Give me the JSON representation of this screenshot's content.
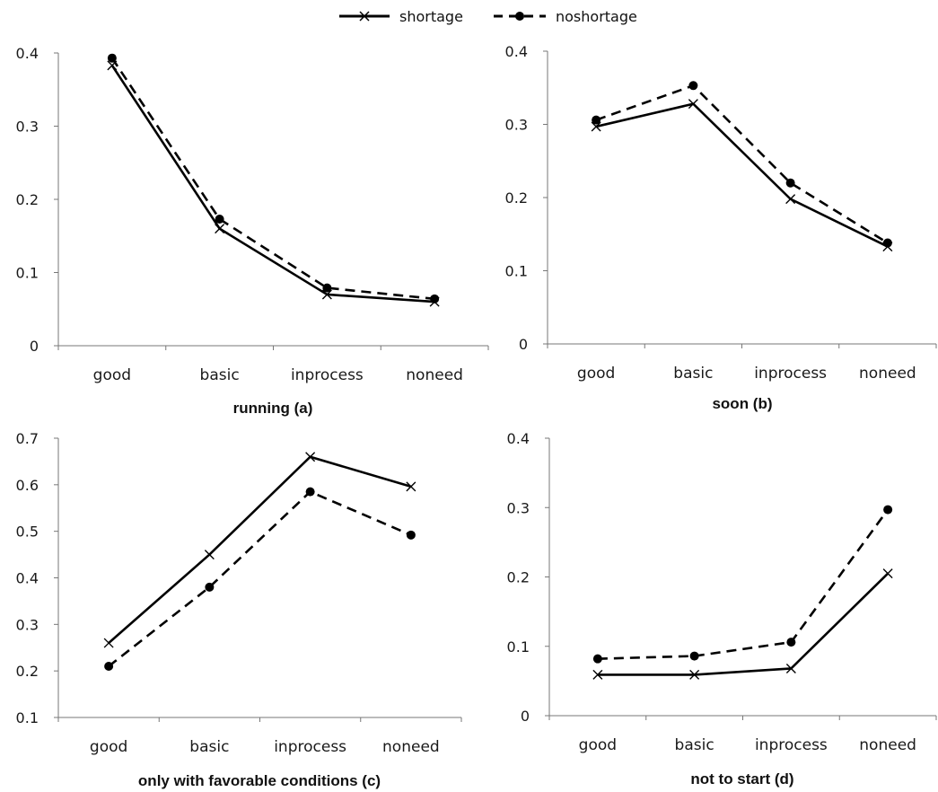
{
  "legend": {
    "position": "top-center",
    "items": [
      {
        "label": "shortage",
        "style": "solid",
        "marker": "cross-icon"
      },
      {
        "label": "noshortage",
        "style": "dashed",
        "marker": "filled-circle-icon"
      }
    ]
  },
  "colors": {
    "line": "#000000",
    "axis": "#777777",
    "text": "#1a1a1a"
  },
  "chart_data": [
    {
      "type": "line",
      "title": "running (a)",
      "xlabel": "",
      "ylabel": "",
      "categories": [
        "good",
        "basic",
        "inprocess",
        "noneed"
      ],
      "ylim": [
        0,
        0.4
      ],
      "yticks": [
        "0",
        "0.1",
        "0.2",
        "0.3",
        "0.4"
      ],
      "grid": false,
      "series": [
        {
          "name": "shortage",
          "values": [
            0.383,
            0.16,
            0.07,
            0.06
          ]
        },
        {
          "name": "noshortage",
          "values": [
            0.393,
            0.173,
            0.079,
            0.064
          ]
        }
      ]
    },
    {
      "type": "line",
      "title": "soon (b)",
      "xlabel": "",
      "ylabel": "",
      "categories": [
        "good",
        "basic",
        "inprocess",
        "noneed"
      ],
      "ylim": [
        0,
        0.4
      ],
      "yticks": [
        "0",
        "0.1",
        "0.2",
        "0.3",
        "0.4"
      ],
      "grid": false,
      "series": [
        {
          "name": "shortage",
          "values": [
            0.297,
            0.328,
            0.198,
            0.133
          ]
        },
        {
          "name": "noshortage",
          "values": [
            0.306,
            0.353,
            0.22,
            0.138
          ]
        }
      ]
    },
    {
      "type": "line",
      "title": "only with favorable conditions (c)",
      "xlabel": "",
      "ylabel": "",
      "categories": [
        "good",
        "basic",
        "inprocess",
        "noneed"
      ],
      "ylim": [
        0.1,
        0.7
      ],
      "yticks": [
        "0.1",
        "0.2",
        "0.3",
        "0.4",
        "0.5",
        "0.6",
        "0.7"
      ],
      "grid": false,
      "series": [
        {
          "name": "shortage",
          "values": [
            0.26,
            0.45,
            0.66,
            0.596
          ]
        },
        {
          "name": "noshortage",
          "values": [
            0.21,
            0.38,
            0.585,
            0.492
          ]
        }
      ]
    },
    {
      "type": "line",
      "title": "not to start (d)",
      "xlabel": "",
      "ylabel": "",
      "categories": [
        "good",
        "basic",
        "inprocess",
        "noneed"
      ],
      "ylim": [
        0,
        0.4
      ],
      "yticks": [
        "0",
        "0.1",
        "0.2",
        "0.3",
        "0.4"
      ],
      "grid": false,
      "series": [
        {
          "name": "shortage",
          "values": [
            0.059,
            0.059,
            0.068,
            0.205
          ]
        },
        {
          "name": "noshortage",
          "values": [
            0.082,
            0.086,
            0.106,
            0.297
          ]
        }
      ]
    }
  ]
}
